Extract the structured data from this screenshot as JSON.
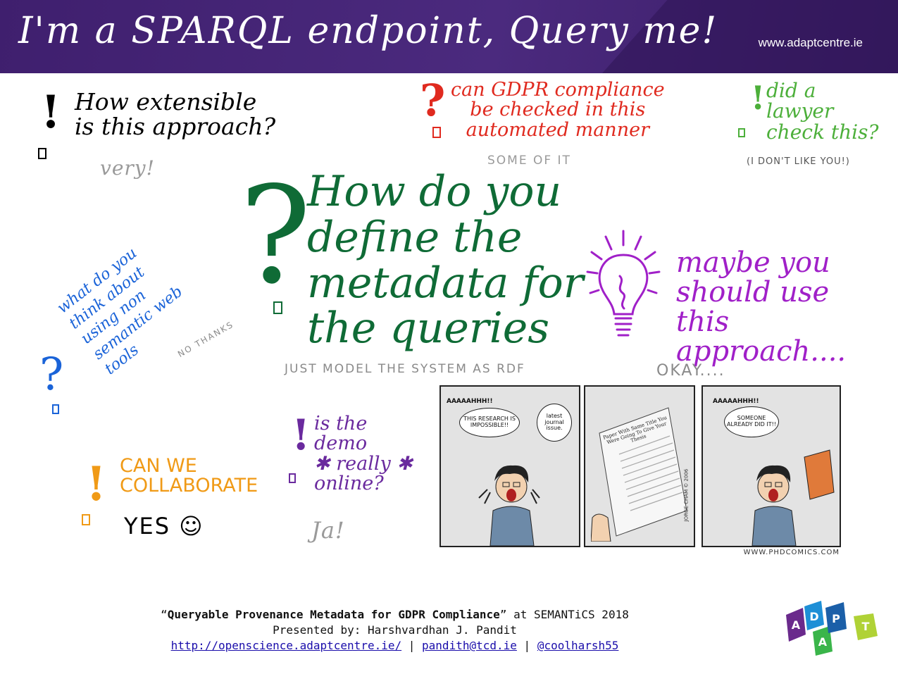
{
  "header": {
    "title": "I'm a SPARQL endpoint, Query me!",
    "url": "www.adaptcentre.ie"
  },
  "notes": [
    {
      "id": "extensible",
      "question": "How extensible\nis this approach?",
      "answer": "very!",
      "color": "#000000",
      "mark": "!"
    },
    {
      "id": "gdpr",
      "question": "can GDPR compliance\nbe checked in this\nautomated manner",
      "answer": "SOME OF IT",
      "color": "#e02a1f",
      "mark": "?"
    },
    {
      "id": "lawyer",
      "question": "did a\nlawyer\ncheck this?",
      "answer": "(I DON'T LIKE YOU!)",
      "color": "#4caf3a",
      "mark": "!"
    },
    {
      "id": "metadata",
      "question": "How do you\ndefine the\nmetadata for\nthe queries",
      "answer": "JUST MODEL THE SYSTEM AS RDF",
      "color": "#0f6b36",
      "mark": "?"
    },
    {
      "id": "approach",
      "question": "maybe you\nshould use\nthis approach....",
      "answer": "OKAY....",
      "color": "#a020c8",
      "mark": "bulb"
    },
    {
      "id": "semanticweb",
      "question": "what do you\nthink about\nusing non\nsemantic web\ntools",
      "answer": "NO THANKS",
      "color": "#1a63d8",
      "mark": "?"
    },
    {
      "id": "collaborate",
      "question": "CAN WE\nCOLLABORATE",
      "answer": "YES ☺",
      "color": "#f09a16",
      "mark": "!"
    },
    {
      "id": "demo",
      "question": "is the\ndemo\n✱ really ✱\nonline?",
      "answer": "Ja!",
      "color": "#6a2a9e",
      "mark": "!"
    }
  ],
  "comic": {
    "panel1_scream": "AAAAAHHH!!",
    "panel1_bubble": "THIS RESEARCH IS IMPOSSIBLE!!",
    "panel1_bubble2": "latest journal issue.",
    "panel2_paper": "Paper With Same Title You Were Going To Give Your Thesis",
    "panel2_sign": "JORGE CHAM © 2006",
    "panel3_scream": "AAAAAHHH!!",
    "panel3_bubble": "SOMEONE ALREADY DID IT!!",
    "credit": "WWW.PHDCOMICS.COM"
  },
  "footer": {
    "title": "Queryable Provenance Metadata for GDPR Compliance",
    "venue": "at SEMANTiCS 2018",
    "presenter": "Presented by: Harshvardhan J. Pandit",
    "link1": "http://openscience.adaptcentre.ie/",
    "link2": "pandith@tcd.ie",
    "link3": "@coolharsh55",
    "sep": "|"
  },
  "logo": {
    "letters": [
      "A",
      "D",
      "A",
      "P",
      "T"
    ],
    "colors": [
      "#6a2a8c",
      "#1e8fd6",
      "#3ab54a",
      "#1b5fa8",
      "#b0d236"
    ]
  }
}
